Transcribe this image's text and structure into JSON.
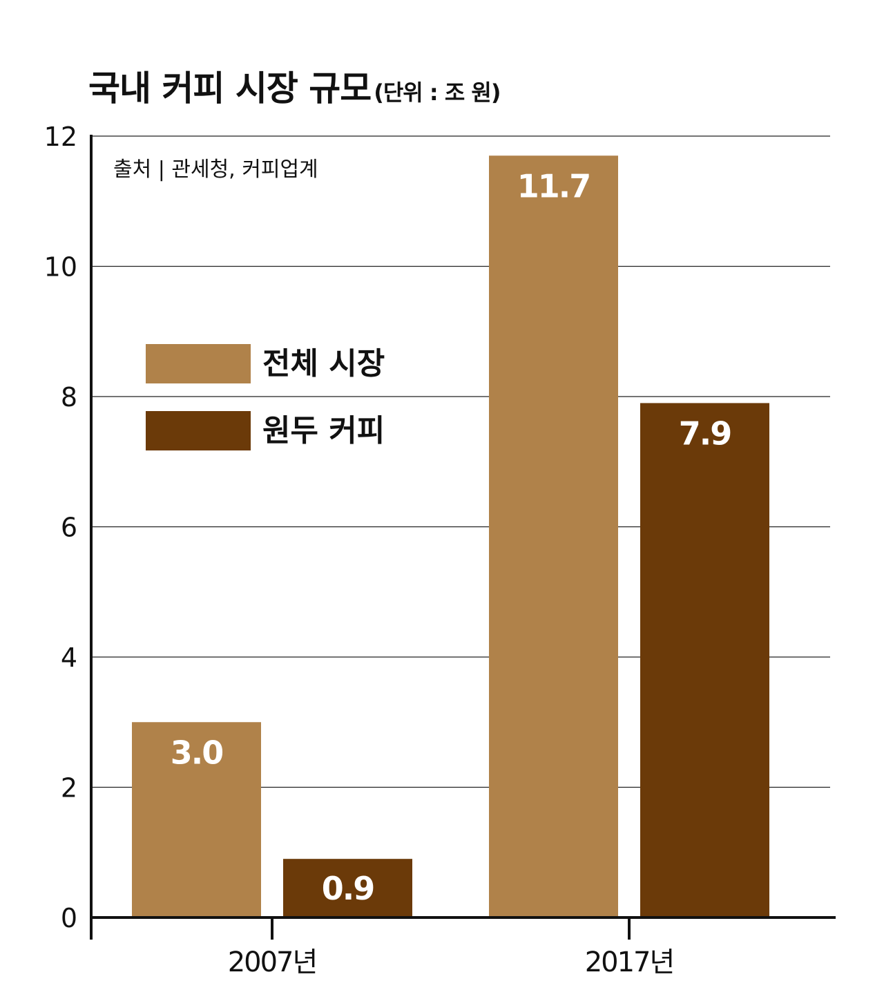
{
  "title": "국내 커피 시장 규모",
  "unit_label": "(단위 : 조 원)",
  "source": "출처 | 관세청, 커피업계",
  "colors": {
    "total_market": "#b0824a",
    "whole_bean_coffee": "#6b3a09",
    "label_text": "#ffffff",
    "gridline": "#222222"
  },
  "chart_data": {
    "type": "bar",
    "categories": [
      "2007년",
      "2017년"
    ],
    "series": [
      {
        "name": "전체 시장",
        "values": [
          3.0,
          11.7
        ],
        "labels": [
          "3.0",
          "11.7"
        ]
      },
      {
        "name": "원두 커피",
        "values": [
          0.9,
          7.9
        ],
        "labels": [
          "0.9",
          "7.9"
        ]
      }
    ],
    "ylim": [
      0,
      12
    ],
    "yticks": [
      "0",
      "2",
      "4",
      "6",
      "8",
      "10",
      "12"
    ],
    "grid": true,
    "legend_position": "upper-left"
  }
}
